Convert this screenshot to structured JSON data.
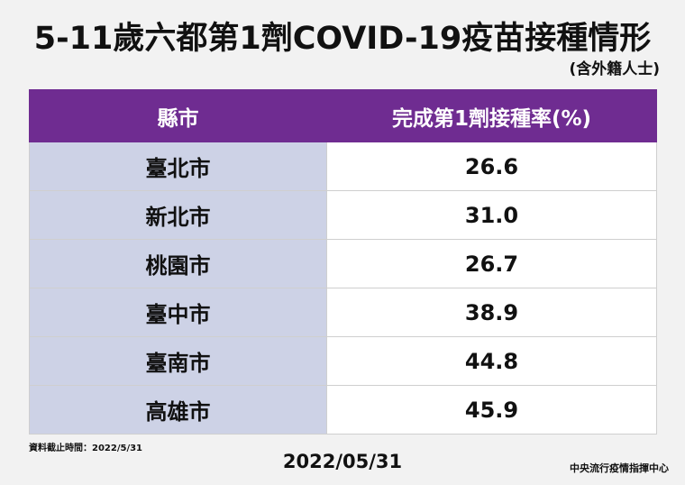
{
  "title": "5-11歲六都第1劑COVID-19疫苗接種情形",
  "subtitle": "(含外籍人士)",
  "table": {
    "headers": [
      "縣市",
      "完成第1劑接種率(%)"
    ],
    "rows": [
      {
        "city": "臺北市",
        "rate": "26.6"
      },
      {
        "city": "新北市",
        "rate": "31.0"
      },
      {
        "city": "桃園市",
        "rate": "26.7"
      },
      {
        "city": "臺中市",
        "rate": "38.9"
      },
      {
        "city": "臺南市",
        "rate": "44.8"
      },
      {
        "city": "高雄市",
        "rate": "45.9"
      }
    ]
  },
  "footer": {
    "source_note": "資料截止時間：2022/5/31",
    "date": "2022/05/31",
    "organization": "中央流行疫情指揮中心"
  },
  "colors": {
    "header_bg": "#6f2c91",
    "city_cell_bg": "#cdd2e6",
    "rate_cell_bg": "#ffffff",
    "page_bg": "#f2f2f2"
  }
}
